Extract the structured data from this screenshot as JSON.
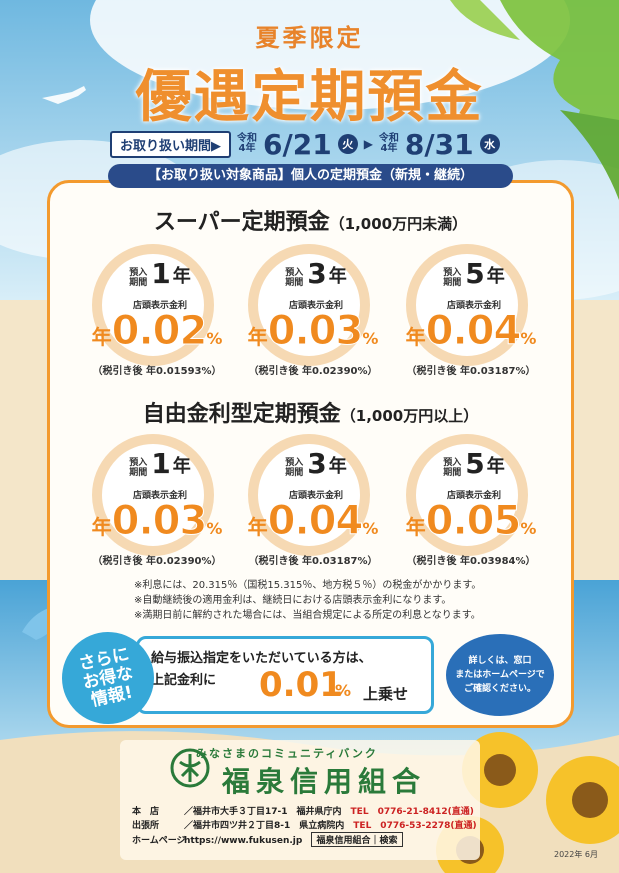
{
  "header": {
    "season": "夏季限定",
    "title": "優遇定期預金",
    "period_label": "お取り扱い期間▶",
    "start_era": [
      "令和",
      "4年"
    ],
    "start_date": "6/21",
    "start_dow": "火",
    "end_era": [
      "令和",
      "4年"
    ],
    "end_date": "8/31",
    "end_dow": "水",
    "target": "【お取り扱い対象商品】個人の定期預金（新規・継続）"
  },
  "super": {
    "title": "スーパー定期預金",
    "cond": "（1,000万円未満）",
    "rates": [
      {
        "pre": "預入期間",
        "num": "1",
        "yr": "年",
        "store": "店頭表示金利",
        "nen": "年",
        "val": "0.02",
        "pct": "%",
        "after": "（税引き後 年0.01593%）"
      },
      {
        "pre": "預入期間",
        "num": "3",
        "yr": "年",
        "store": "店頭表示金利",
        "nen": "年",
        "val": "0.03",
        "pct": "%",
        "after": "（税引き後 年0.02390%）"
      },
      {
        "pre": "預入期間",
        "num": "5",
        "yr": "年",
        "store": "店頭表示金利",
        "nen": "年",
        "val": "0.04",
        "pct": "%",
        "after": "（税引き後 年0.03187%）"
      }
    ]
  },
  "free": {
    "title": "自由金利型定期預金",
    "cond": "（1,000万円以上）",
    "rates": [
      {
        "pre": "預入期間",
        "num": "1",
        "yr": "年",
        "store": "店頭表示金利",
        "nen": "年",
        "val": "0.03",
        "pct": "%",
        "after": "（税引き後 年0.02390%）"
      },
      {
        "pre": "預入期間",
        "num": "3",
        "yr": "年",
        "store": "店頭表示金利",
        "nen": "年",
        "val": "0.04",
        "pct": "%",
        "after": "（税引き後 年0.03187%）"
      },
      {
        "pre": "預入期間",
        "num": "5",
        "yr": "年",
        "store": "店頭表示金利",
        "nen": "年",
        "val": "0.05",
        "pct": "%",
        "after": "（税引き後 年0.03984%）"
      }
    ]
  },
  "notes": [
    "※利息には、20.315％（国税15.315％、地方税５％）の税金がかかります。",
    "※自動継続後の適用金利は、継続日における店頭表示金利になります。",
    "※満期日前に解約された場合には、当組合規定による所定の利息となります。"
  ],
  "extra": {
    "badge": [
      "さらに",
      "お得な",
      "情報!"
    ],
    "line1": "給与振込指定をいただいている方は、",
    "line2": "上記金利に",
    "rate": "0.01",
    "pct": "%",
    "tail": "上乗せ"
  },
  "info": [
    "詳しくは、窓口",
    "またはホームページで",
    "ご確認ください。"
  ],
  "footer": {
    "tagline": "みなさまのコミュニティバンク",
    "bank_name": "福泉信用組合",
    "rows": [
      {
        "label": "本　店",
        "text": "／福井市大手３丁目17-1　福井県庁内",
        "tel": "TEL　0776-21-8412(直通)"
      },
      {
        "label": "出張所",
        "text": "／福井市四ツ井２丁目8-1　県立病院内",
        "tel": "TEL　0776-53-2278(直通)"
      },
      {
        "label": "ホームページ",
        "text": "https://www.fukusen.jp",
        "tel": ""
      }
    ],
    "check_name": "福泉信用組合",
    "check_label": "検索",
    "issued": "2022年 6月"
  },
  "colors": {
    "orange": "#f08a1f",
    "navy": "#1f3f74",
    "green": "#2a7a3a",
    "sky": "#36a8d8"
  }
}
